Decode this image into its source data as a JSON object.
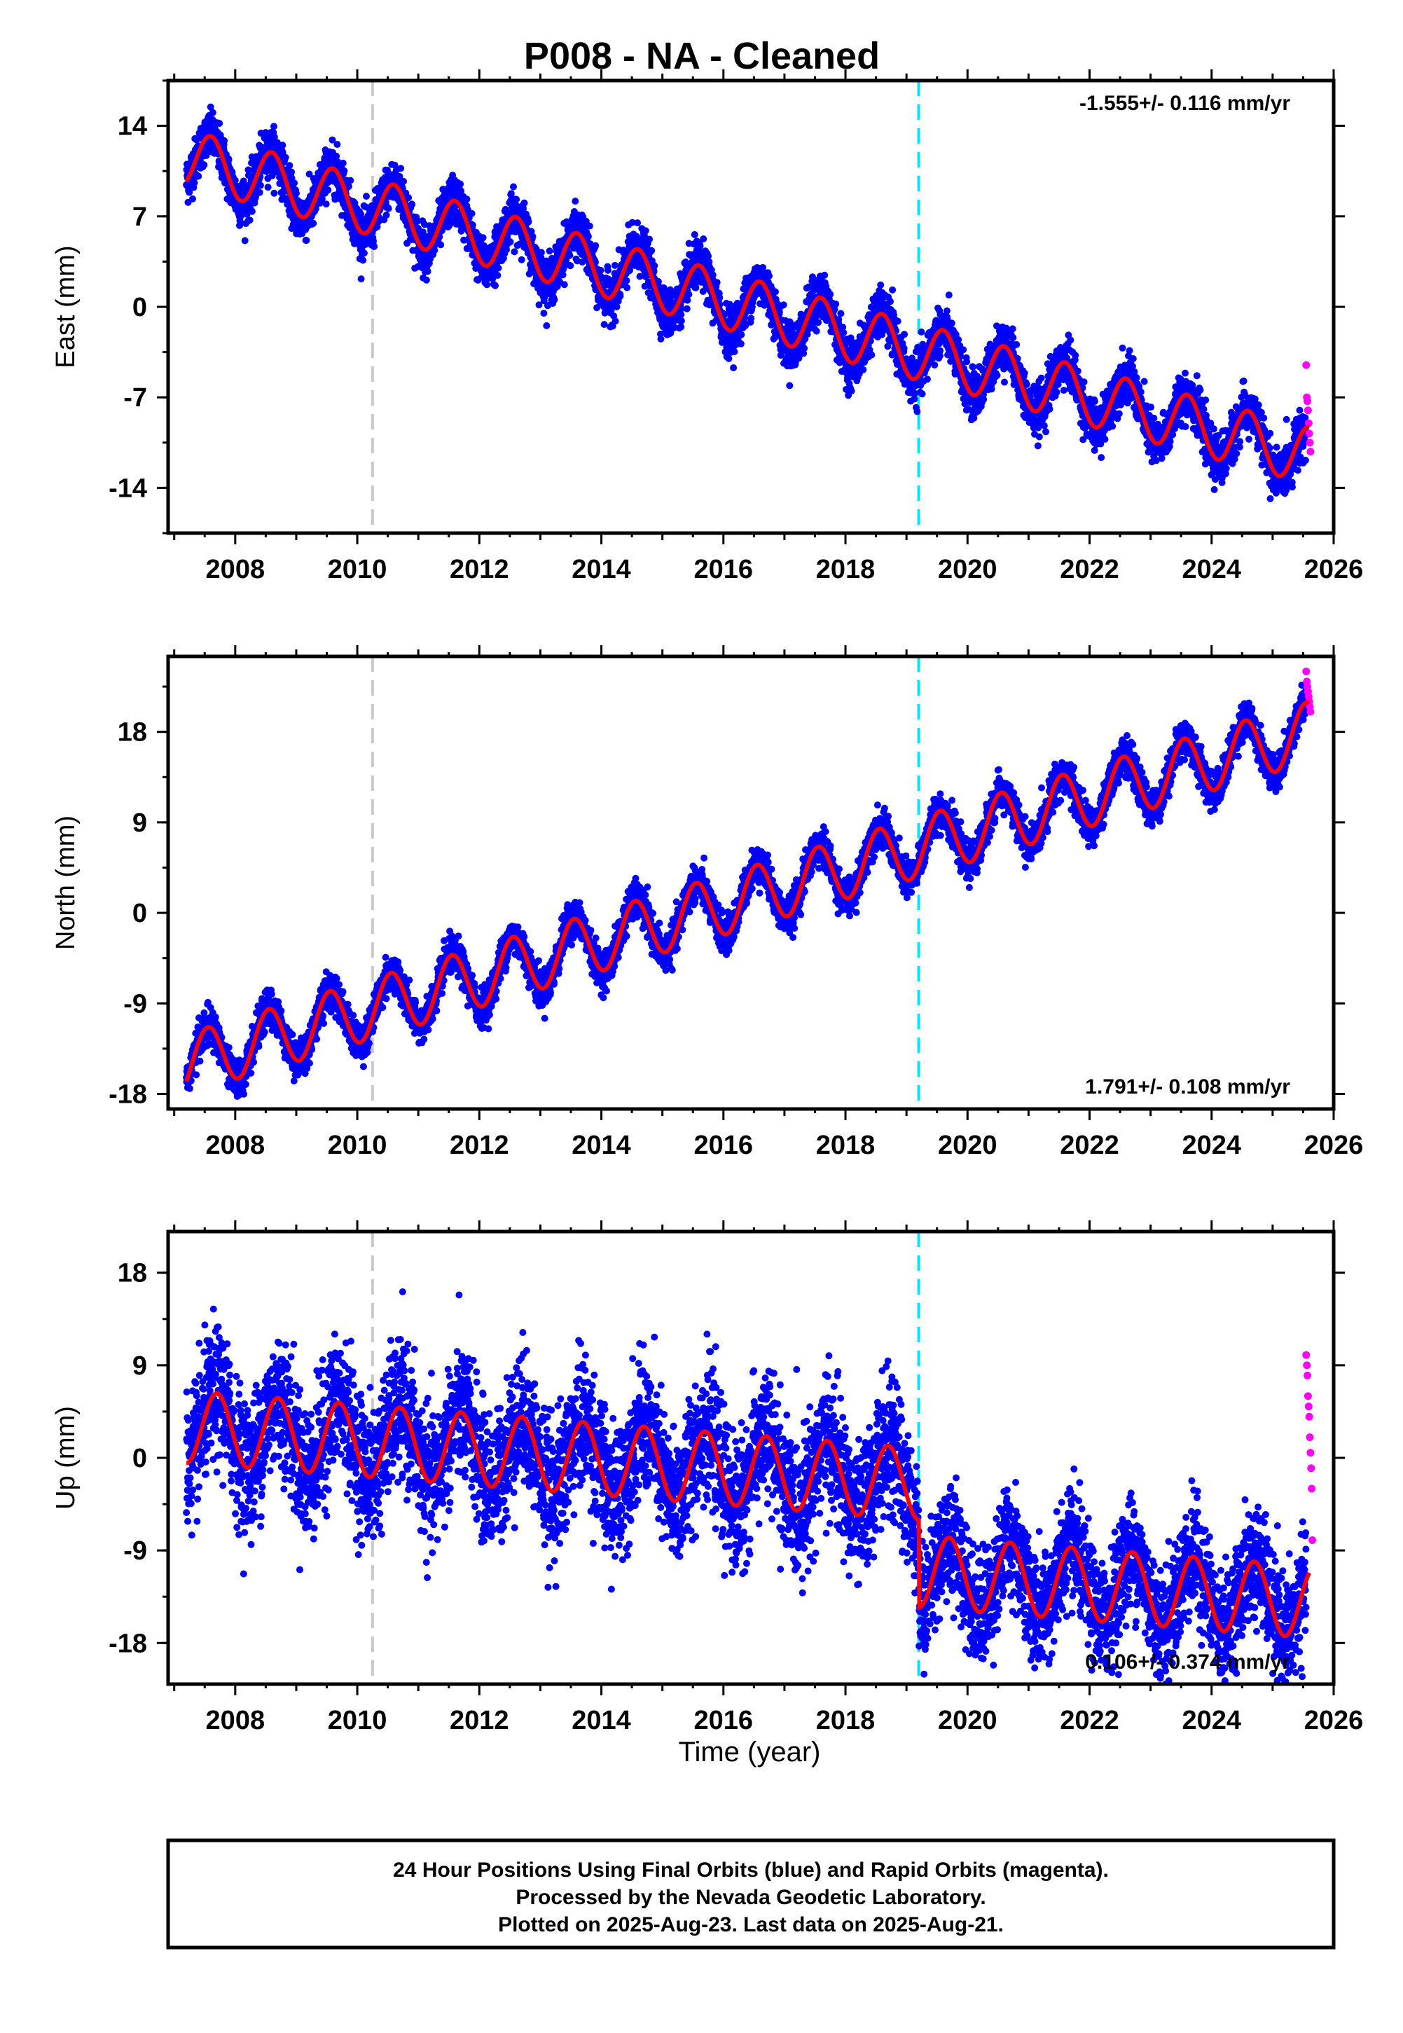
{
  "chart_data": {
    "type": "scatter",
    "title": "P008  - NA - Cleaned",
    "xlabel": "Time (year)",
    "xlim": [
      2006.9,
      2026.0
    ],
    "x_ticks": [
      "2008",
      "2010",
      "2012",
      "2014",
      "2016",
      "2018",
      "2020",
      "2022",
      "2024",
      "2026"
    ],
    "vertical_lines": [
      {
        "x": 2010.25,
        "color": "#c8c8c8",
        "style": "dashed"
      },
      {
        "x": 2019.2,
        "color": "#00e5ff",
        "style": "dashed"
      }
    ],
    "colors": {
      "final_orbits": "#0000ff",
      "rapid_orbits": "#ff00ff",
      "model_fit": "#ff0000"
    },
    "grid": false,
    "panels": [
      {
        "id": "east",
        "ylabel": "East (mm)",
        "ylim": [
          -17.5,
          17.5
        ],
        "y_ticks": [
          "14",
          "7",
          "0",
          "-7",
          "-14"
        ],
        "rate_label": "-1.555+/- 0.116 mm/yr",
        "rate_position": "top-right",
        "model": {
          "start": [
            2007.2,
            11.5
          ],
          "end": [
            2025.6,
            -11.5
          ],
          "amplitude": 2.2,
          "peak_phase": 0.6,
          "offsets": []
        },
        "rapid_points": [
          [
            2025.55,
            -4.5
          ],
          [
            2025.56,
            -7.0
          ],
          [
            2025.57,
            -7.3
          ],
          [
            2025.58,
            -8.0
          ],
          [
            2025.59,
            -9.0
          ],
          [
            2025.6,
            -9.8
          ],
          [
            2025.61,
            -10.5
          ],
          [
            2025.62,
            -11.2
          ]
        ]
      },
      {
        "id": "north",
        "ylabel": "North (mm)",
        "ylim": [
          -19.5,
          25.5
        ],
        "y_ticks": [
          "18",
          "9",
          "0",
          "-9",
          "-18"
        ],
        "rate_label": "1.791+/- 0.108 mm/yr",
        "rate_position": "bottom-right",
        "model": {
          "start": [
            2007.2,
            -15.0
          ],
          "end": [
            2025.6,
            18.0
          ],
          "amplitude": 3.0,
          "peak_phase": 0.55,
          "offsets": []
        },
        "rapid_points": [
          [
            2025.55,
            24.0
          ],
          [
            2025.56,
            23.0
          ],
          [
            2025.57,
            22.5
          ],
          [
            2025.58,
            22.0
          ],
          [
            2025.59,
            21.5
          ],
          [
            2025.6,
            21.0
          ],
          [
            2025.61,
            20.5
          ],
          [
            2025.62,
            20.0
          ]
        ]
      },
      {
        "id": "up",
        "ylabel": "Up (mm)",
        "ylim": [
          -22,
          22
        ],
        "y_ticks": [
          "18",
          "9",
          "0",
          "-9",
          "-18"
        ],
        "rate_label": "0.106+/- 0.374 mm/yr",
        "rate_position": "bottom-right",
        "model": {
          "start": [
            2007.2,
            3.0
          ],
          "end": [
            2025.6,
            -5.5
          ],
          "amplitude": 3.5,
          "peak_phase": 0.7,
          "offsets": [
            {
              "x": 2019.2,
              "dy": -8.5
            }
          ]
        },
        "rapid_points": [
          [
            2025.55,
            10.0
          ],
          [
            2025.56,
            9.0
          ],
          [
            2025.57,
            8.0
          ],
          [
            2025.58,
            6.0
          ],
          [
            2025.59,
            5.0
          ],
          [
            2025.6,
            4.0
          ],
          [
            2025.61,
            2.0
          ],
          [
            2025.62,
            0.5
          ],
          [
            2025.63,
            -1.0
          ],
          [
            2025.64,
            -3.0
          ],
          [
            2025.65,
            -8.0
          ]
        ]
      }
    ]
  },
  "footer": {
    "line1": "24 Hour Positions Using Final Orbits (blue) and Rapid Orbits (magenta).",
    "line2": "Processed by the Nevada Geodetic Laboratory.",
    "line3": "Plotted on 2025-Aug-23. Last data on 2025-Aug-21."
  }
}
